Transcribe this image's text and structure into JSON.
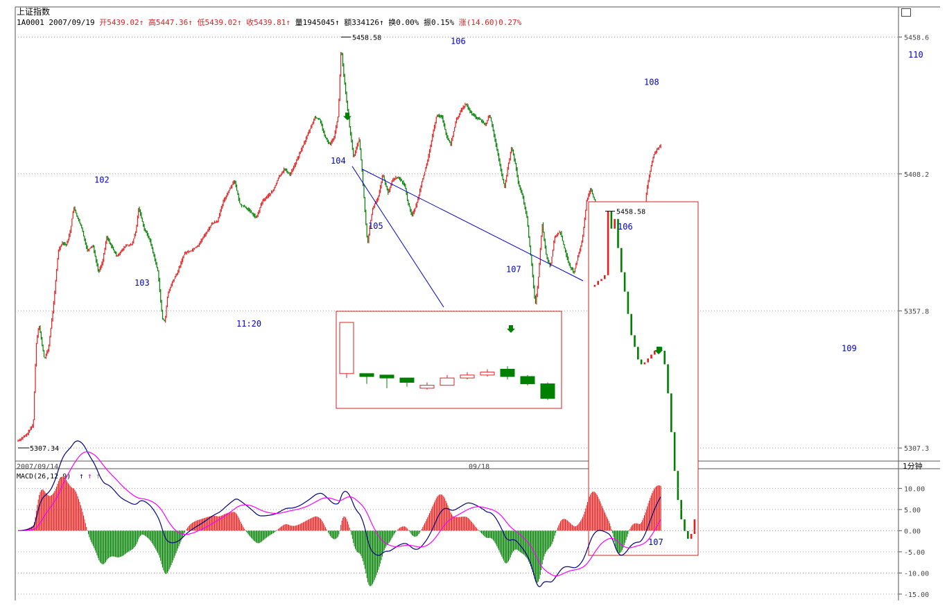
{
  "title": "上证指数",
  "quote": {
    "code": "1A0001",
    "date": "2007/09/19",
    "open_label": "开",
    "open": "5439.02",
    "open_arrow": "↑",
    "high_label": "高",
    "high": "5447.36",
    "high_arrow": "↑",
    "low_label": "低",
    "low": "5439.02",
    "low_arrow": "↑",
    "close_label": "收",
    "close": "5439.81",
    "close_arrow": "↑",
    "vol_label": "量",
    "vol": "1945045",
    "vol_arrow": "↑",
    "amt_label": "额",
    "amt": "334126",
    "amt_arrow": "↑",
    "turn_label": "换",
    "turn": "0.00%",
    "amp_label": "振",
    "amp": "0.15%",
    "chg_label": "涨",
    "chg": "(14.60)0.27%"
  },
  "period_label": "1分钟",
  "colors": {
    "up": "#e02020",
    "down": "#008000",
    "wave": "#0000cc",
    "dif": "#000080",
    "dea": "#ff00ff",
    "grid": "#999999",
    "box": "#d02020"
  },
  "chart_data": {
    "type": "candlestick",
    "price_axis": {
      "ticks": [
        5458.6,
        5408.2,
        5357.8,
        5307.3
      ],
      "ylim": [
        5303,
        5462
      ]
    },
    "time_labels": [
      "2007/09/14",
      "09/18"
    ],
    "max_label": "5458.58",
    "min_label": "5307.34",
    "price_path": [
      [
        0,
        5310
      ],
      [
        12,
        5312
      ],
      [
        22,
        5316
      ],
      [
        26,
        5345
      ],
      [
        30,
        5353
      ],
      [
        38,
        5340
      ],
      [
        44,
        5344
      ],
      [
        52,
        5362
      ],
      [
        58,
        5380
      ],
      [
        64,
        5383
      ],
      [
        70,
        5382
      ],
      [
        76,
        5388
      ],
      [
        80,
        5396
      ],
      [
        86,
        5392
      ],
      [
        92,
        5388
      ],
      [
        100,
        5380
      ],
      [
        108,
        5382
      ],
      [
        116,
        5372
      ],
      [
        122,
        5376
      ],
      [
        128,
        5385
      ],
      [
        134,
        5382
      ],
      [
        142,
        5378
      ],
      [
        150,
        5380
      ],
      [
        156,
        5382
      ],
      [
        164,
        5382
      ],
      [
        170,
        5387
      ],
      [
        174,
        5396
      ],
      [
        182,
        5388
      ],
      [
        190,
        5384
      ],
      [
        196,
        5378
      ],
      [
        202,
        5372
      ],
      [
        208,
        5355
      ],
      [
        212,
        5354
      ],
      [
        216,
        5364
      ],
      [
        222,
        5368
      ],
      [
        230,
        5372
      ],
      [
        240,
        5379
      ],
      [
        250,
        5380
      ],
      [
        260,
        5382
      ],
      [
        270,
        5386
      ],
      [
        280,
        5390
      ],
      [
        288,
        5391
      ],
      [
        296,
        5398
      ],
      [
        304,
        5402
      ],
      [
        312,
        5406
      ],
      [
        320,
        5397
      ],
      [
        328,
        5396
      ],
      [
        336,
        5394
      ],
      [
        344,
        5392
      ],
      [
        352,
        5398
      ],
      [
        360,
        5400
      ],
      [
        368,
        5402
      ],
      [
        376,
        5407
      ],
      [
        384,
        5410
      ],
      [
        392,
        5408
      ],
      [
        400,
        5412
      ],
      [
        410,
        5418
      ],
      [
        420,
        5424
      ],
      [
        428,
        5429
      ],
      [
        436,
        5428
      ],
      [
        442,
        5422
      ],
      [
        450,
        5419
      ],
      [
        456,
        5422
      ],
      [
        462,
        5430
      ],
      [
        466,
        5455
      ],
      [
        470,
        5444
      ],
      [
        476,
        5430
      ],
      [
        480,
        5422
      ],
      [
        484,
        5414
      ],
      [
        488,
        5418
      ],
      [
        492,
        5421
      ],
      [
        496,
        5410
      ],
      [
        500,
        5396
      ],
      [
        504,
        5382
      ],
      [
        508,
        5390
      ],
      [
        512,
        5396
      ],
      [
        520,
        5400
      ],
      [
        526,
        5408
      ],
      [
        534,
        5401
      ],
      [
        540,
        5406
      ],
      [
        546,
        5407
      ],
      [
        552,
        5406
      ],
      [
        558,
        5404
      ],
      [
        562,
        5398
      ],
      [
        568,
        5393
      ],
      [
        572,
        5395
      ],
      [
        576,
        5398
      ],
      [
        582,
        5405
      ],
      [
        590,
        5412
      ],
      [
        596,
        5420
      ],
      [
        604,
        5430
      ],
      [
        612,
        5429
      ],
      [
        618,
        5422
      ],
      [
        624,
        5419
      ],
      [
        632,
        5428
      ],
      [
        640,
        5432
      ],
      [
        646,
        5434
      ],
      [
        652,
        5431
      ],
      [
        660,
        5429
      ],
      [
        668,
        5428
      ],
      [
        674,
        5426
      ],
      [
        680,
        5430
      ],
      [
        684,
        5426
      ],
      [
        690,
        5418
      ],
      [
        696,
        5410
      ],
      [
        702,
        5403
      ],
      [
        706,
        5410
      ],
      [
        712,
        5418
      ],
      [
        718,
        5411
      ],
      [
        722,
        5404
      ],
      [
        728,
        5400
      ],
      [
        734,
        5392
      ],
      [
        740,
        5377
      ],
      [
        746,
        5360
      ],
      [
        750,
        5368
      ],
      [
        756,
        5390
      ],
      [
        762,
        5378
      ],
      [
        768,
        5374
      ],
      [
        774,
        5385
      ],
      [
        782,
        5387
      ],
      [
        790,
        5379
      ],
      [
        796,
        5374
      ],
      [
        802,
        5372
      ],
      [
        808,
        5378
      ],
      [
        814,
        5384
      ],
      [
        820,
        5398
      ],
      [
        826,
        5403
      ],
      [
        832,
        5398
      ],
      [
        840,
        5390
      ],
      [
        846,
        5387
      ],
      [
        852,
        5384
      ],
      [
        856,
        5375
      ],
      [
        862,
        5358
      ],
      [
        868,
        5368
      ],
      [
        874,
        5378
      ],
      [
        880,
        5385
      ],
      [
        884,
        5385
      ],
      [
        890,
        5381
      ],
      [
        896,
        5378
      ],
      [
        902,
        5392
      ],
      [
        908,
        5404
      ],
      [
        914,
        5412
      ],
      [
        918,
        5416
      ],
      [
        928,
        5419
      ]
    ],
    "wave_labels": [
      {
        "label": "102",
        "t": 110,
        "p": 5405
      },
      {
        "label": "103",
        "t": 168,
        "p": 5367
      },
      {
        "label": "11:20",
        "t": 315,
        "p": 5352
      },
      {
        "label": "104",
        "t": 451,
        "p": 5412
      },
      {
        "label": "105",
        "t": 505,
        "p": 5388
      },
      {
        "label": "106",
        "t": 624,
        "p": 5456
      },
      {
        "label": "107",
        "t": 704,
        "p": 5372
      },
      {
        "label": "108",
        "t": 903,
        "p": 5441
      },
      {
        "label": "109",
        "t": 1188,
        "p": 5343
      },
      {
        "label": "110",
        "t": 1284,
        "p": 5451
      }
    ],
    "inset_a": {
      "candles": [
        [
          5,
          40,
          3,
          2
        ],
        [
          5,
          3,
          4,
          -2
        ],
        [
          4,
          2,
          -2,
          -5
        ],
        [
          2,
          -1,
          -2,
          -4
        ],
        [
          -5,
          -3,
          -1,
          -6
        ],
        [
          -3,
          2,
          4,
          -3
        ],
        [
          2,
          4,
          6,
          1
        ],
        [
          4,
          6,
          8,
          3
        ],
        [
          8,
          3,
          10,
          1
        ],
        [
          3,
          -2,
          4,
          -3
        ],
        [
          -2,
          -12,
          -1,
          -13
        ]
      ]
    },
    "inset_b": {
      "max_label": "5458.58",
      "label_106": "106",
      "label_107": "107"
    },
    "macd": {
      "title": "MACD(26,12,9)",
      "legend_arrows": [
        "↑",
        "↑",
        "↑"
      ],
      "ticks": [
        "10.00",
        "5.00",
        "0.00",
        "-5.00",
        "-10.00",
        "-15.00"
      ],
      "tick_values": [
        10,
        5,
        0,
        -5,
        -10,
        -15
      ],
      "ylim": [
        -16.5,
        14
      ]
    }
  }
}
